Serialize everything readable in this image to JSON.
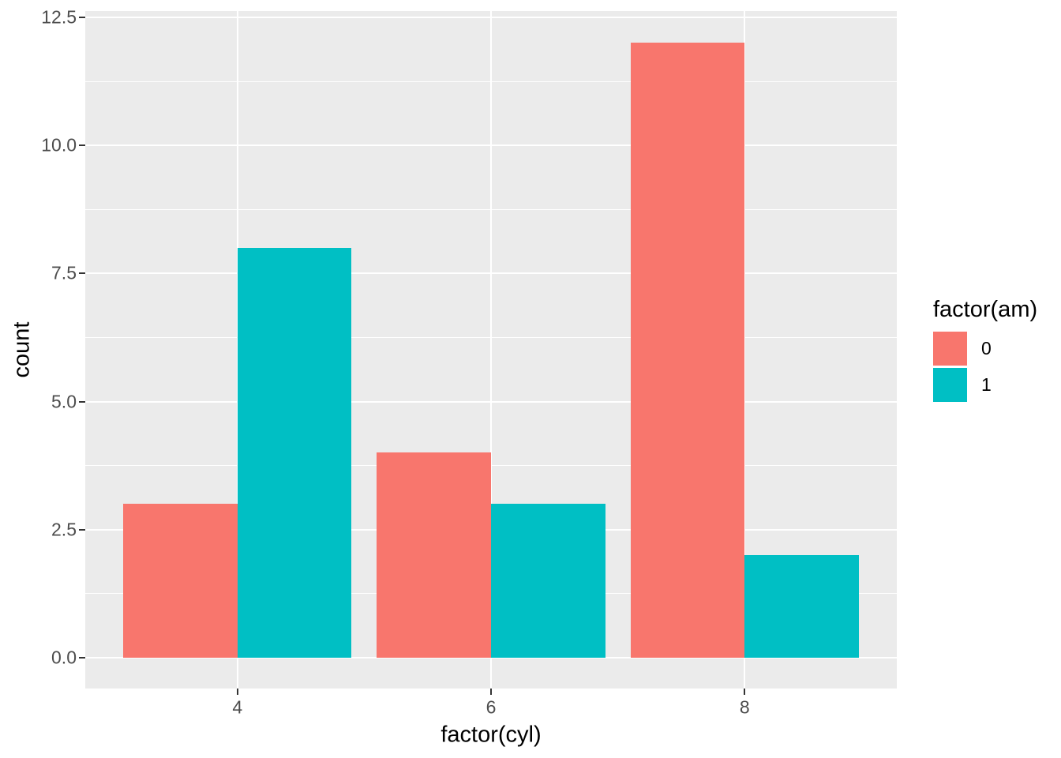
{
  "figure": {
    "background": "#FFFFFF",
    "panel_background": "#EBEBEB",
    "gridline_color": "#FFFFFF",
    "tick_mark_color": "#333333",
    "tick_label_color": "#4D4D4D",
    "title_color": "#000000"
  },
  "chart_data": {
    "type": "bar",
    "mode": "dodged",
    "title": "",
    "xlabel": "factor(cyl)",
    "ylabel": "count",
    "categories": [
      "4",
      "6",
      "8"
    ],
    "series": [
      {
        "name": "0",
        "color": "#F8766D",
        "values": [
          3,
          4,
          12
        ]
      },
      {
        "name": "1",
        "color": "#00BFC4",
        "values": [
          8,
          3,
          2
        ]
      }
    ],
    "y_ticks": [
      {
        "value": 0,
        "label": "0.0"
      },
      {
        "value": 2.5,
        "label": "2.5"
      },
      {
        "value": 5,
        "label": "5.0"
      },
      {
        "value": 7.5,
        "label": "7.5"
      },
      {
        "value": 10,
        "label": "10.0"
      },
      {
        "value": 12.5,
        "label": "12.5"
      }
    ],
    "ylim": [
      -0.6,
      12.6
    ],
    "grid": "on",
    "legend": {
      "title": "factor(am)",
      "position": "right"
    }
  }
}
